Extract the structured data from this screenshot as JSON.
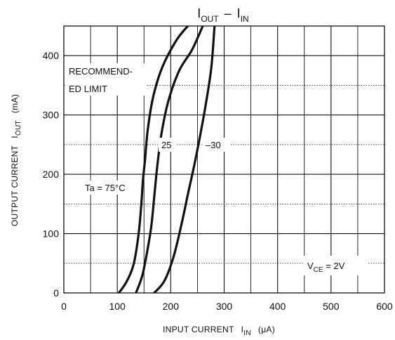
{
  "chart_data": {
    "type": "line",
    "title_parts": {
      "left_main": "I",
      "left_sub": "OUT",
      "dash": "–",
      "right_main": "I",
      "right_sub": "IN"
    },
    "xlabel_parts": {
      "text": "INPUT CURRENT",
      "symbol_main": "I",
      "symbol_sub": "IN",
      "unit": "(μA)"
    },
    "ylabel_parts": {
      "text": "OUTPUT CURRENT",
      "symbol_main": "I",
      "symbol_sub": "OUT",
      "unit": "(mA)"
    },
    "xlim": [
      0,
      600
    ],
    "ylim": [
      0,
      450
    ],
    "x_ticks": [
      0,
      100,
      200,
      300,
      400,
      500,
      600
    ],
    "y_ticks": [
      0,
      100,
      200,
      300,
      400
    ],
    "grid": true,
    "minor_grid": {
      "x_step": 50,
      "y_step": 50
    },
    "series": [
      {
        "name": "Ta = 75°C",
        "points": [
          [
            103,
            0
          ],
          [
            118,
            20
          ],
          [
            131,
            50
          ],
          [
            140,
            100
          ],
          [
            145,
            150
          ],
          [
            148,
            190
          ],
          [
            152,
            225
          ],
          [
            157,
            275
          ],
          [
            167,
            330
          ],
          [
            184,
            380
          ],
          [
            210,
            425
          ],
          [
            232,
            450
          ]
        ]
      },
      {
        "name": "25",
        "points": [
          [
            135,
            0
          ],
          [
            147,
            30
          ],
          [
            157,
            75
          ],
          [
            164,
            115
          ],
          [
            170,
            170
          ],
          [
            175,
            215
          ],
          [
            183,
            270
          ],
          [
            196,
            325
          ],
          [
            216,
            375
          ],
          [
            240,
            410
          ],
          [
            260,
            450
          ]
        ]
      },
      {
        "name": "–30",
        "points": [
          [
            169,
            0
          ],
          [
            188,
            20
          ],
          [
            205,
            60
          ],
          [
            220,
            115
          ],
          [
            233,
            170
          ],
          [
            244,
            215
          ],
          [
            255,
            265
          ],
          [
            266,
            320
          ],
          [
            276,
            380
          ],
          [
            282,
            450
          ]
        ]
      }
    ],
    "annotations": {
      "recommended_line1": "RECOMMEND-",
      "recommended_line2": "ED LIMIT",
      "label_75": "Ta = 75°C",
      "label_25": "25",
      "label_m30": "–30",
      "vce_main": "V",
      "vce_sub": "CE",
      "vce_value": " = 2V"
    }
  }
}
